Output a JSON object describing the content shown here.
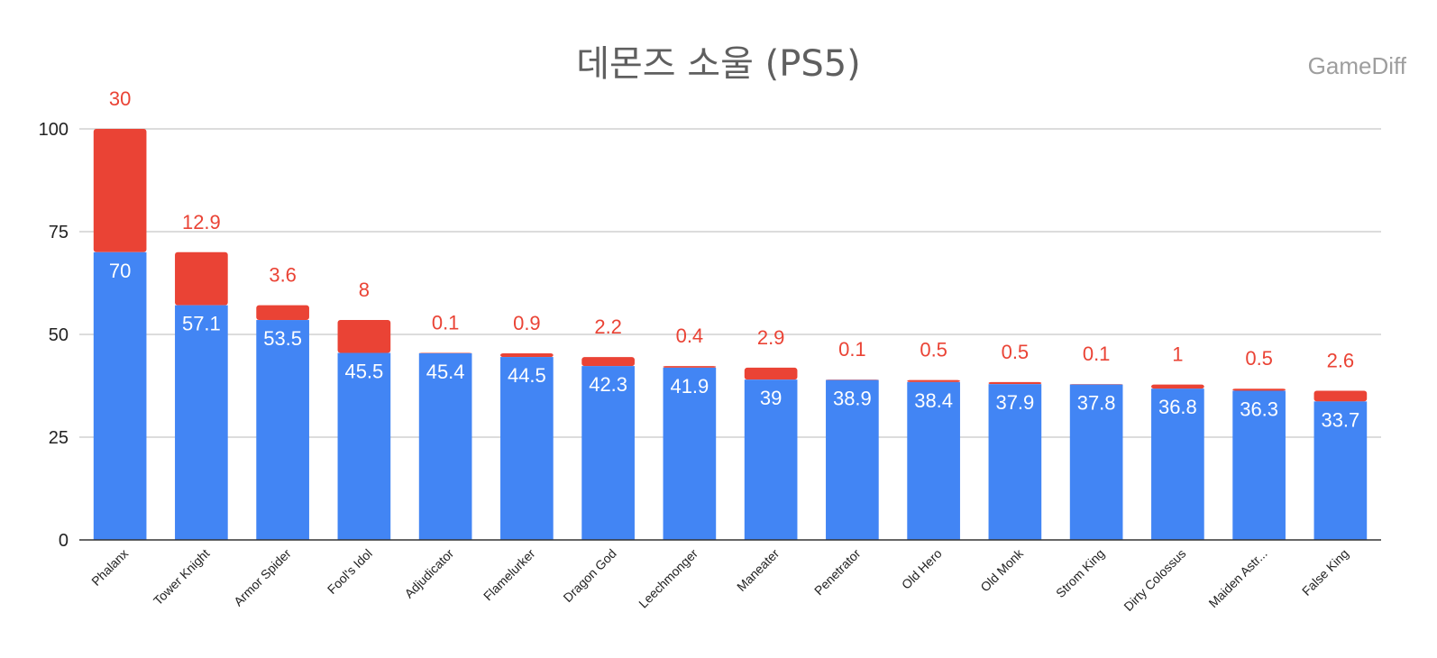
{
  "watermark": "GameDiff",
  "chart_data": {
    "type": "bar",
    "stacked": true,
    "title": "데몬즈 소울 (PS5)",
    "xlabel": "",
    "ylabel": "",
    "ylim": [
      0,
      100
    ],
    "yticks": [
      0,
      25,
      50,
      75,
      100
    ],
    "grid": true,
    "legend": "none",
    "categories": [
      "Phalanx",
      "Tower Knight",
      "Armor Spider",
      "Fool's Idol",
      "Adjudicator",
      "Flamelurker",
      "Dragon God",
      "Leechmonger",
      "Maneater",
      "Penetrator",
      "Old Hero",
      "Old Monk",
      "Strom King",
      "Dirty Colossus",
      "Maiden Astr...",
      "False King"
    ],
    "series": [
      {
        "color": "#4285f4",
        "values": [
          70,
          57.1,
          53.5,
          45.5,
          45.4,
          44.5,
          42.3,
          41.9,
          39,
          38.9,
          38.4,
          37.9,
          37.8,
          36.8,
          36.3,
          33.7
        ]
      },
      {
        "color": "#ea4335",
        "values": [
          30,
          12.9,
          3.6,
          8,
          0.1,
          0.9,
          2.2,
          0.4,
          2.9,
          0.1,
          0.5,
          0.5,
          0.1,
          1,
          0.5,
          2.6
        ]
      }
    ]
  }
}
